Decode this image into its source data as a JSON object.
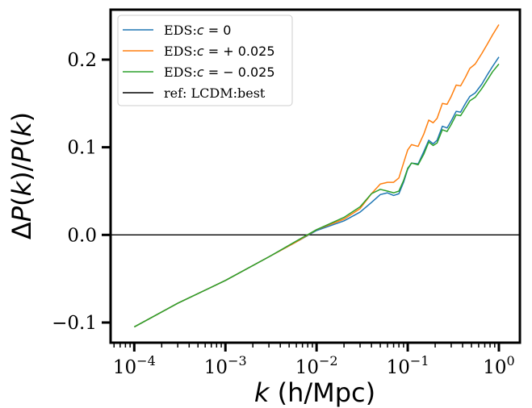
{
  "chart_data": {
    "type": "line",
    "xlabel": "k (h/Mpc)",
    "ylabel": "ΔP(k)/P(k)",
    "xscale": "log",
    "xlim": [
      5.5e-05,
      1.7
    ],
    "ylim": [
      -0.123,
      0.257
    ],
    "xticks": [
      {
        "value": 0.0001,
        "base": "10",
        "exp": "−4"
      },
      {
        "value": 0.001,
        "base": "10",
        "exp": "−3"
      },
      {
        "value": 0.01,
        "base": "10",
        "exp": "−2"
      },
      {
        "value": 0.1,
        "base": "10",
        "exp": "−1"
      },
      {
        "value": 1,
        "base": "10",
        "exp": "0"
      }
    ],
    "yticks": [
      {
        "value": 0.2,
        "label": "0.2"
      },
      {
        "value": 0.1,
        "label": "0.1"
      },
      {
        "value": 0.0,
        "label": "0.0"
      },
      {
        "value": -0.1,
        "label": "−0.1"
      }
    ],
    "legend_position": "top-left",
    "series": [
      {
        "name": "EDS:c = 0",
        "label_prefix": "EDS:",
        "label_var": "c",
        "label_rest": " = 0",
        "color": "#1f77b4",
        "points": [
          [
            0.0001,
            -0.105
          ],
          [
            0.0003,
            -0.078
          ],
          [
            0.001,
            -0.052
          ],
          [
            0.003,
            -0.025
          ],
          [
            0.006,
            -0.008
          ],
          [
            0.01,
            0.005
          ],
          [
            0.02,
            0.016
          ],
          [
            0.03,
            0.026
          ],
          [
            0.04,
            0.037
          ],
          [
            0.05,
            0.046
          ],
          [
            0.06,
            0.048
          ],
          [
            0.07,
            0.045
          ],
          [
            0.08,
            0.047
          ],
          [
            0.09,
            0.06
          ],
          [
            0.1,
            0.075
          ],
          [
            0.11,
            0.082
          ],
          [
            0.13,
            0.081
          ],
          [
            0.15,
            0.095
          ],
          [
            0.17,
            0.108
          ],
          [
            0.19,
            0.104
          ],
          [
            0.21,
            0.108
          ],
          [
            0.24,
            0.124
          ],
          [
            0.27,
            0.122
          ],
          [
            0.3,
            0.13
          ],
          [
            0.34,
            0.141
          ],
          [
            0.38,
            0.14
          ],
          [
            0.43,
            0.15
          ],
          [
            0.48,
            0.158
          ],
          [
            0.55,
            0.162
          ],
          [
            0.65,
            0.172
          ],
          [
            0.75,
            0.183
          ],
          [
            0.85,
            0.192
          ],
          [
            1.0,
            0.203
          ]
        ]
      },
      {
        "name": "EDS:c = + 0.025",
        "label_prefix": "EDS:",
        "label_var": "c",
        "label_rest": " = + 0.025",
        "color": "#ff7f0e",
        "points": [
          [
            0.0001,
            -0.105
          ],
          [
            0.0003,
            -0.078
          ],
          [
            0.001,
            -0.052
          ],
          [
            0.003,
            -0.025
          ],
          [
            0.006,
            -0.008
          ],
          [
            0.01,
            0.006
          ],
          [
            0.02,
            0.018
          ],
          [
            0.03,
            0.03
          ],
          [
            0.04,
            0.047
          ],
          [
            0.05,
            0.058
          ],
          [
            0.06,
            0.06
          ],
          [
            0.07,
            0.06
          ],
          [
            0.08,
            0.065
          ],
          [
            0.09,
            0.082
          ],
          [
            0.1,
            0.097
          ],
          [
            0.11,
            0.103
          ],
          [
            0.13,
            0.101
          ],
          [
            0.15,
            0.115
          ],
          [
            0.17,
            0.131
          ],
          [
            0.19,
            0.128
          ],
          [
            0.21,
            0.133
          ],
          [
            0.24,
            0.15
          ],
          [
            0.27,
            0.149
          ],
          [
            0.3,
            0.158
          ],
          [
            0.34,
            0.171
          ],
          [
            0.38,
            0.17
          ],
          [
            0.43,
            0.18
          ],
          [
            0.48,
            0.19
          ],
          [
            0.55,
            0.195
          ],
          [
            0.65,
            0.207
          ],
          [
            0.75,
            0.218
          ],
          [
            0.85,
            0.228
          ],
          [
            1.0,
            0.24
          ]
        ]
      },
      {
        "name": "EDS:c = − 0.025",
        "label_prefix": "EDS:",
        "label_var": "c",
        "label_rest": " = − 0.025",
        "color": "#2ca02c",
        "points": [
          [
            0.0001,
            -0.105
          ],
          [
            0.0003,
            -0.078
          ],
          [
            0.001,
            -0.052
          ],
          [
            0.003,
            -0.025
          ],
          [
            0.006,
            -0.007
          ],
          [
            0.01,
            0.006
          ],
          [
            0.02,
            0.02
          ],
          [
            0.03,
            0.032
          ],
          [
            0.04,
            0.047
          ],
          [
            0.05,
            0.052
          ],
          [
            0.06,
            0.05
          ],
          [
            0.07,
            0.048
          ],
          [
            0.08,
            0.05
          ],
          [
            0.09,
            0.062
          ],
          [
            0.1,
            0.076
          ],
          [
            0.11,
            0.082
          ],
          [
            0.13,
            0.08
          ],
          [
            0.15,
            0.092
          ],
          [
            0.17,
            0.106
          ],
          [
            0.19,
            0.102
          ],
          [
            0.21,
            0.105
          ],
          [
            0.24,
            0.12
          ],
          [
            0.27,
            0.118
          ],
          [
            0.3,
            0.126
          ],
          [
            0.34,
            0.137
          ],
          [
            0.38,
            0.136
          ],
          [
            0.43,
            0.145
          ],
          [
            0.48,
            0.153
          ],
          [
            0.55,
            0.157
          ],
          [
            0.65,
            0.167
          ],
          [
            0.75,
            0.177
          ],
          [
            0.85,
            0.186
          ],
          [
            1.0,
            0.195
          ]
        ]
      },
      {
        "name": "ref: LCDM:best",
        "label_prefix": "ref: LCDM:best",
        "label_var": "",
        "label_rest": "",
        "color": "#000000",
        "points": [
          [
            5.5e-05,
            0.0
          ],
          [
            1.7,
            0.0
          ]
        ]
      }
    ]
  }
}
